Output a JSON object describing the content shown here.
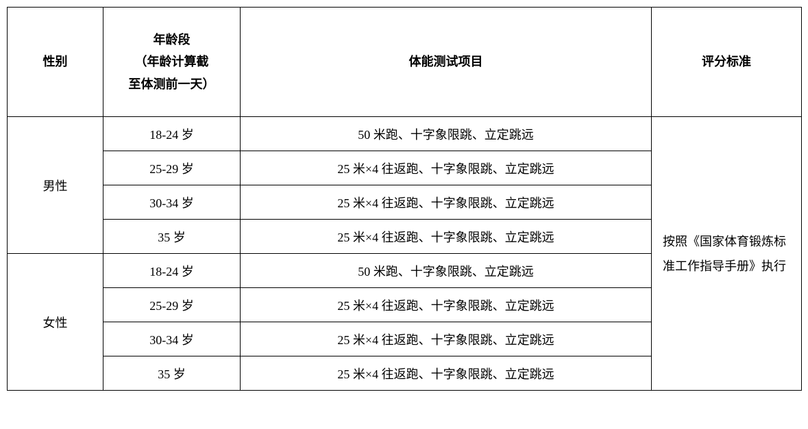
{
  "table": {
    "columns": {
      "gender": "性别",
      "age": "年龄段\n（年龄计算截\n至体测前一天）",
      "test": "体能测试项目",
      "standard": "评分标准"
    },
    "male_label": "男性",
    "female_label": "女性",
    "male_rows": [
      {
        "age": "18-24 岁",
        "test": "50 米跑、十字象限跳、立定跳远"
      },
      {
        "age": "25-29 岁",
        "test": "25 米×4 往返跑、十字象限跳、立定跳远"
      },
      {
        "age": "30-34 岁",
        "test": "25 米×4 往返跑、十字象限跳、立定跳远"
      },
      {
        "age": "35 岁",
        "test": "25 米×4 往返跑、十字象限跳、立定跳远"
      }
    ],
    "female_rows": [
      {
        "age": "18-24 岁",
        "test": "50 米跑、十字象限跳、立定跳远"
      },
      {
        "age": "25-29 岁",
        "test": "25 米×4 往返跑、十字象限跳、立定跳远"
      },
      {
        "age": "30-34 岁",
        "test": "25 米×4 往返跑、十字象限跳、立定跳远"
      },
      {
        "age": "35 岁",
        "test": "25 米×4 往返跑、十字象限跳、立定跳远"
      }
    ],
    "standard_text": "按照《国家体育锻炼标准工作指导手册》执行",
    "styling": {
      "border_color": "#000000",
      "background_color": "#ffffff",
      "text_color": "#000000",
      "header_fontsize": 18,
      "body_fontsize": 18,
      "header_fontweight": "bold",
      "font_family": "SimSun",
      "column_widths": {
        "gender": 140,
        "age": 200,
        "test": 600,
        "standard": 219
      },
      "header_row_height": 160,
      "data_row_height": 50
    }
  }
}
